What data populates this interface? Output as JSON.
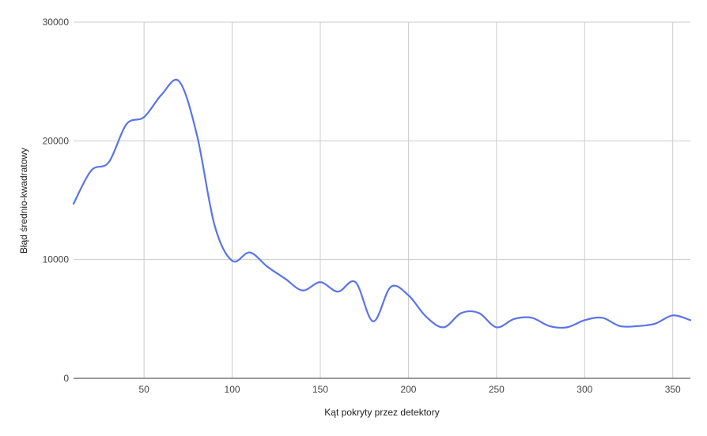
{
  "chart_data": {
    "type": "line",
    "title": "",
    "xlabel": "Kąt pokryty przez detektory",
    "ylabel": "Błąd średnio-kwadratowy",
    "xlim": [
      10,
      360
    ],
    "ylim": [
      0,
      30000
    ],
    "grid": true,
    "legend": "none",
    "line_color": "#5b74e8",
    "x_ticks": [
      50,
      100,
      150,
      200,
      250,
      300,
      350
    ],
    "x_tick_labels": [
      "50",
      "100",
      "150",
      "200",
      "250",
      "300",
      "350"
    ],
    "y_ticks": [
      0,
      10000,
      20000,
      30000
    ],
    "y_tick_labels": [
      "0",
      "10000",
      "20000",
      "30000"
    ],
    "series": [
      {
        "x": [
          10,
          20,
          30,
          40,
          50,
          60,
          70,
          80,
          90,
          100,
          110,
          120,
          130,
          140,
          150,
          160,
          170,
          180,
          190,
          200,
          210,
          220,
          230,
          240,
          250,
          260,
          270,
          280,
          290,
          300,
          310,
          320,
          330,
          340,
          350,
          360
        ],
        "values": [
          14700,
          17500,
          18200,
          21400,
          22000,
          23900,
          25000,
          20500,
          12900,
          9900,
          10600,
          9400,
          8400,
          7400,
          8100,
          7300,
          8100,
          4800,
          7700,
          7000,
          5200,
          4300,
          5500,
          5500,
          4300,
          5000,
          5100,
          4400,
          4300,
          4900,
          5100,
          4400,
          4400,
          4600,
          5300,
          4900
        ]
      }
    ]
  }
}
